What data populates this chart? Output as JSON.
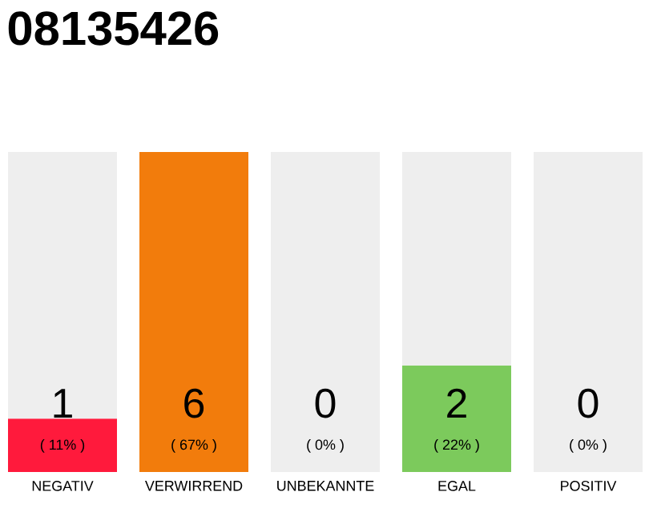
{
  "chart_data": {
    "type": "bar",
    "title": "08135426",
    "categories": [
      "NEGATIV",
      "VERWIRREND",
      "UNBEKANNTE",
      "EGAL",
      "POSITIV"
    ],
    "stacked": true,
    "series": [
      {
        "values": [
          1,
          6,
          0,
          2,
          0
        ],
        "colors": [
          "#ff1a3c",
          "#f27c0c",
          "#bbbbbb",
          "#7cca5c",
          "#bbbbbb"
        ],
        "value_labels": [
          "1",
          "6",
          null,
          "2",
          null
        ]
      },
      {
        "values": [
          5,
          0,
          6,
          4,
          6
        ],
        "color": "#eeeeee"
      }
    ],
    "ylim": [
      0,
      6
    ],
    "annotations": [
      "( 11% )",
      "( 67% )",
      "( 0% )",
      "( 22% )",
      "( 0% )",
      "0",
      "0"
    ]
  }
}
